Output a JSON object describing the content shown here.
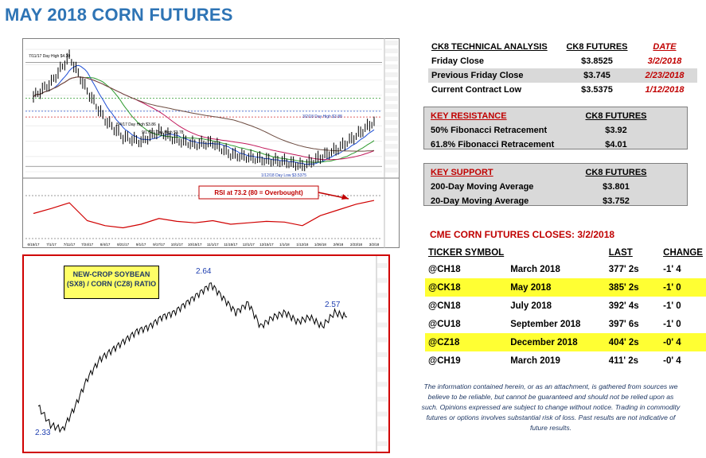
{
  "title": "MAY 2018 CORN FUTURES",
  "colors": {
    "title_blue": "#2e74b5",
    "red": "#c00000",
    "highlight_yellow": "#ffff33",
    "grey_row": "#d9d9d9"
  },
  "tech_table": {
    "headers": [
      "CK8 TECHNICAL ANALYSIS",
      "CK8 FUTURES",
      "DATE"
    ],
    "rows": [
      {
        "label": "Friday Close",
        "value": "$3.8525",
        "date": "3/2/2018"
      },
      {
        "label": "Previous Friday Close",
        "value": "$3.745",
        "date": "2/23/2018"
      },
      {
        "label": "Current Contract Low",
        "value": "$3.5375",
        "date": "1/12/2018"
      }
    ]
  },
  "resistance_table": {
    "headers": [
      "KEY RESISTANCE",
      "CK8 FUTURES"
    ],
    "rows": [
      {
        "label": "50% Fibonacci Retracement",
        "value": "$3.92"
      },
      {
        "label": "61.8% Fibonacci Retracement",
        "value": "$4.01"
      }
    ]
  },
  "support_table": {
    "headers": [
      "KEY SUPPORT",
      "CK8 FUTURES"
    ],
    "rows": [
      {
        "label": "200-Day Moving Average",
        "value": "$3.801"
      },
      {
        "label": "20-Day Moving Average",
        "value": "$3.752"
      }
    ]
  },
  "closes": {
    "title": "CME CORN FUTURES CLOSES:  3/2/2018",
    "headers": [
      "TICKER SYMBOL",
      "",
      "LAST",
      "CHANGE"
    ],
    "rows": [
      {
        "ticker": "@CH18",
        "month": "March 2018",
        "last": "377' 2s",
        "change": "-1' 4",
        "highlight": false
      },
      {
        "ticker": "@CK18",
        "month": "May 2018",
        "last": "385' 2s",
        "change": "-1' 0",
        "highlight": true
      },
      {
        "ticker": "@CN18",
        "month": "July 2018",
        "last": "392' 4s",
        "change": "-1' 0",
        "highlight": false
      },
      {
        "ticker": "@CU18",
        "month": "September 2018",
        "last": "397' 6s",
        "change": "-1' 0",
        "highlight": false
      },
      {
        "ticker": "@CZ18",
        "month": "December 2018",
        "last": "404' 2s",
        "change": "-0' 4",
        "highlight": true
      },
      {
        "ticker": "@CH19",
        "month": "March 2019",
        "last": "411' 2s",
        "change": "-0' 4",
        "highlight": false
      }
    ]
  },
  "disclaimer": "The information contained herein, or as an attachment, is gathered from sources we believe to be reliable, but cannot be guaranteed and should not be relied upon as such. Opinions expressed are subject to change without notice. Trading in commodity futures or options involves substantial risk of loss. Past results are not indicative of future results.",
  "chart_data": [
    {
      "type": "line",
      "annotations": {
        "high": "7/11/17 Day High $4.30",
        "high2": "8/4/17 Day High $3.86",
        "high3": "9/17/17 Day High $3.78",
        "recent_high": "3/2/18 Day High $3.88",
        "low": "1/12/18 Day Low $3.5375",
        "rsi_note": "RSI at 73.2 (80 = Overbought)"
      },
      "x": [
        "6/15/17",
        "7/1/17",
        "7/11/17",
        "7/24/17",
        "8/4/17",
        "8/21/17",
        "9/1/17",
        "9/17/17",
        "10/1/17",
        "10/15/17",
        "11/1/17",
        "11/15/17",
        "12/1/17",
        "12/15/17",
        "1/1/18",
        "1/12/18",
        "1/26/18",
        "2/9/18",
        "2/23/18",
        "3/2/18"
      ],
      "series": [
        {
          "values": [
            4.02,
            4.12,
            4.3,
            4.06,
            3.86,
            3.74,
            3.71,
            3.78,
            3.72,
            3.69,
            3.7,
            3.62,
            3.6,
            3.58,
            3.57,
            3.54,
            3.6,
            3.66,
            3.75,
            3.85
          ]
        }
      ],
      "ylim": [
        3.5,
        4.35
      ],
      "rsi": [
        55,
        62,
        70,
        45,
        38,
        35,
        40,
        48,
        44,
        42,
        45,
        40,
        42,
        44,
        43,
        38,
        52,
        60,
        68,
        73.2
      ],
      "rsi_ylim": [
        20,
        100
      ]
    },
    {
      "type": "line",
      "title": "NEW-CROP SOYBEAN (SX8) / CORN (CZ8) RATIO",
      "labels": {
        "low": "2.33",
        "high": "2.64",
        "last": "2.57"
      },
      "series": [
        {
          "values": [
            2.38,
            2.34,
            2.33,
            2.38,
            2.44,
            2.48,
            2.5,
            2.52,
            2.54,
            2.55,
            2.57,
            2.58,
            2.6,
            2.62,
            2.64,
            2.61,
            2.58,
            2.6,
            2.55,
            2.57,
            2.58,
            2.56,
            2.57,
            2.55,
            2.58,
            2.57
          ]
        }
      ],
      "ylim": [
        2.3,
        2.68
      ]
    }
  ]
}
